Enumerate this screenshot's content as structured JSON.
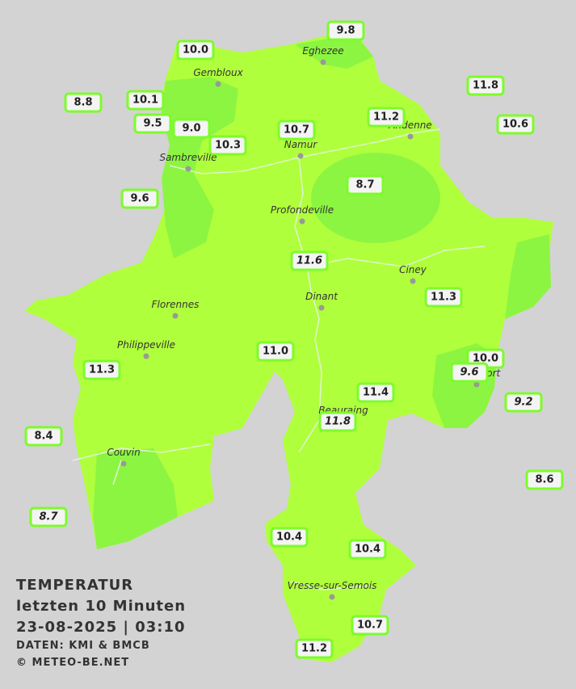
{
  "title": {
    "lines": [
      "TEMPERATUR",
      "letzten 10 Minuten",
      "23-08-2025  |  03:10"
    ],
    "source": "DATEN: KMI & BMCB",
    "copyright": "© METEO-BE.NET"
  },
  "cities": [
    "Eghezee",
    "Gembloux",
    "Andenne",
    "Namur",
    "Sambreville",
    "Profondeville",
    "Ciney",
    "Dinant",
    "Florennes",
    "Philippeville",
    "Beauraing",
    "Rochefort",
    "Couvin",
    "Vresse-sur-Semois"
  ],
  "stations": [
    "10.0",
    "9.8",
    "8.8",
    "10.1",
    "9.5",
    "9.0",
    "10.3",
    "10.7",
    "11.2",
    "11.8",
    "10.6",
    "8.7",
    "9.6",
    "11.6",
    "11.3",
    "11.0",
    "10.0",
    "9.6",
    "11.3",
    "11.4",
    "11.8",
    "9.2",
    "8.4",
    "8.6",
    "8.7",
    "10.4",
    "10.4",
    "10.7",
    "11.2"
  ]
}
